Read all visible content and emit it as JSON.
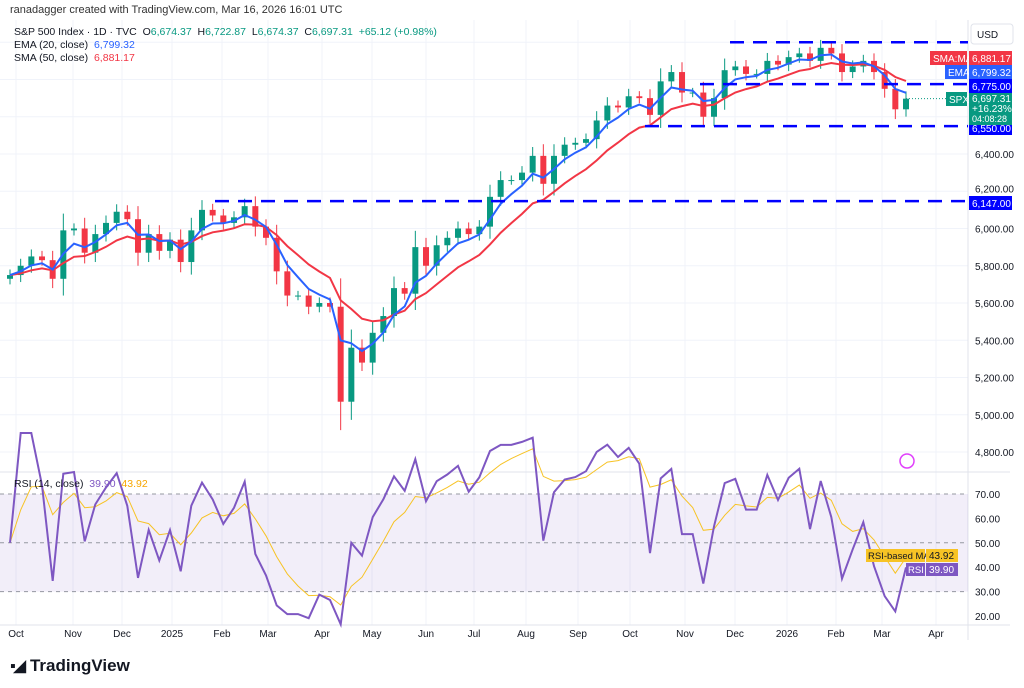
{
  "credit": "ranadagger created with TradingView.com, Mar 16, 2026 16:01 UTC",
  "legend": {
    "symbol": "S&P 500 Index · 1D · TVC",
    "o_label": "O",
    "o": "6,674.37",
    "h_label": "H",
    "h": "6,722.87",
    "l_label": "L",
    "l": "6,674.37",
    "c_label": "C",
    "c": "6,697.31",
    "change": "+65.12 (+0.98%)",
    "ema_label": "EMA (20, close)",
    "ema": "6,799.32",
    "sma_label": "SMA (50, close)",
    "sma": "6,881.17"
  },
  "rsi_legend": {
    "label": "RSI (14, close)",
    "rsi": "39.90",
    "ma": "43.92"
  },
  "footer": {
    "logo": "TradingView"
  },
  "colors": {
    "up": "#089981",
    "down": "#f23645",
    "ema": "#2962ff",
    "sma": "#f23645",
    "rsi": "#7e57c2",
    "rsi_ma": "#f7c325",
    "levels": "#0000ff"
  },
  "chart_data": {
    "type": "candlestick",
    "currency": "USD",
    "price_axis": {
      "ticks": [
        "6,400.00",
        "6,200.00",
        "6,000.00",
        "5,800.00",
        "5,600.00",
        "5,400.00",
        "5,200.00",
        "5,000.00",
        "4,800.00"
      ],
      "ylim": [
        4700,
        7050
      ]
    },
    "rsi_axis": {
      "ticks": [
        "70.00",
        "60.00",
        "50.00",
        "40.00",
        "30.00",
        "20.00"
      ],
      "band": [
        30,
        70
      ],
      "mid": 50
    },
    "time_axis": [
      "Oct",
      "Nov",
      "Dec",
      "2025",
      "Feb",
      "Mar",
      "Apr",
      "May",
      "Jun",
      "Jul",
      "Aug",
      "Sep",
      "Oct",
      "Nov",
      "Dec",
      "2026",
      "Feb",
      "Mar",
      "Apr"
    ],
    "weekly_closes": [
      5750,
      5800,
      5850,
      5830,
      5730,
      5990,
      6000,
      5870,
      5970,
      6030,
      6090,
      6050,
      5870,
      5970,
      5880,
      5940,
      5820,
      5990,
      6100,
      6070,
      6030,
      6060,
      6120,
      6010,
      5950,
      5770,
      5640,
      5640,
      5580,
      5600,
      5580,
      5070,
      5360,
      5280,
      5440,
      5530,
      5680,
      5650,
      5900,
      5800,
      5910,
      5950,
      6000,
      5970,
      6010,
      6170,
      6260,
      6260,
      6300,
      6390,
      6240,
      6390,
      6450,
      6460,
      6480,
      6580,
      6660,
      6650,
      6710,
      6700,
      6610,
      6790,
      6840,
      6730,
      6730,
      6600,
      6700,
      6850,
      6870,
      6830,
      6830,
      6900,
      6880,
      6920,
      6940,
      6900,
      6970,
      6940,
      6840,
      6870,
      6900,
      6840,
      6750,
      6640,
      6697
    ],
    "levels": [
      {
        "value": 7000,
        "label": ""
      },
      {
        "value": 6775,
        "label": "6,775.00"
      },
      {
        "value": 6550,
        "label": "6,550.00"
      },
      {
        "value": 6147,
        "label": "6,147.00"
      }
    ],
    "price_labels": {
      "sma_tag": "SMA:MA",
      "sma": "6,881.17",
      "ema_tag": "EMA",
      "ema": "6,799.32",
      "spx_tag": "SPX",
      "last": "6,697.31",
      "pct": "+16.23%",
      "countdown": "04:08:28"
    },
    "rsi_labels": {
      "ma_tag": "RSI-based MA",
      "ma": "43.92",
      "rsi_tag": "RSI",
      "rsi": "39.90"
    }
  }
}
